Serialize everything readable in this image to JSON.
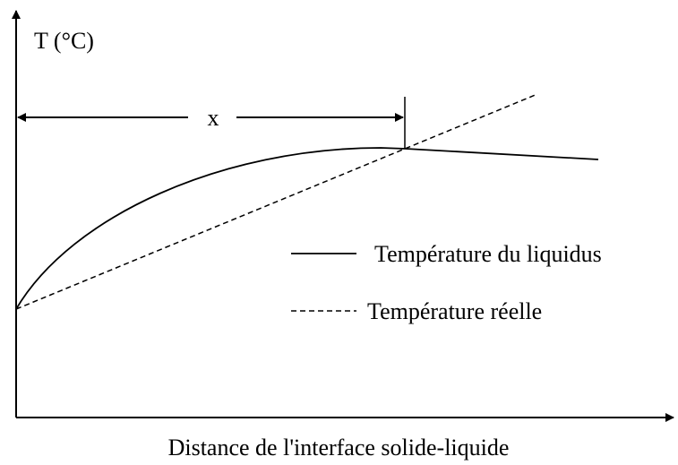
{
  "y_axis_label": "T (°C)",
  "x_axis_label": "Distance de l'interface solide-liquide",
  "distance_label": "x",
  "legend": [
    {
      "label": "Température du liquidus",
      "style": "solid"
    },
    {
      "label": "Température réelle",
      "style": "dashed"
    }
  ]
}
